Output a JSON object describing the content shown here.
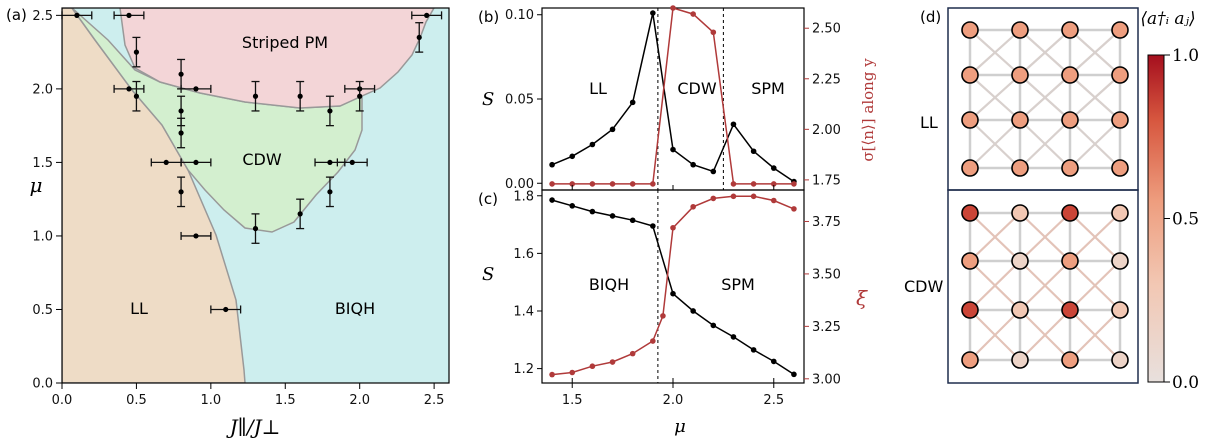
{
  "chart_data": [
    {
      "panel": "(a)",
      "type": "phase-diagram",
      "xlabel": "J∥/J⊥",
      "ylabel": "μ",
      "xlim": [
        0,
        2.6
      ],
      "ylim": [
        0,
        2.55
      ],
      "xticks": [
        0.0,
        0.5,
        1.0,
        1.5,
        2.0,
        2.5
      ],
      "yticks": [
        0.0,
        0.5,
        1.0,
        1.5,
        2.0,
        2.5
      ],
      "regions": [
        {
          "label": "Striped PM",
          "color": "#f3d5d7",
          "label_at": [
            1.55,
            2.35
          ]
        },
        {
          "label": "CDW",
          "color": "#d3efcf",
          "label_at": [
            1.35,
            1.5
          ]
        },
        {
          "label": "LL",
          "color": "#eedcc6",
          "label_at": [
            0.55,
            0.5
          ]
        },
        {
          "label": "BIQH",
          "color": "#cdeeee",
          "label_at": [
            1.95,
            0.5
          ]
        }
      ],
      "points": [
        {
          "x": 0.1,
          "y": 2.5,
          "xerr": 0.1,
          "yerr": 0
        },
        {
          "x": 0.45,
          "y": 2.5,
          "xerr": 0.1,
          "yerr": 0
        },
        {
          "x": 0.5,
          "y": 2.25,
          "xerr": 0,
          "yerr": 0.1
        },
        {
          "x": 0.45,
          "y": 2.0,
          "xerr": 0.1,
          "yerr": 0
        },
        {
          "x": 0.5,
          "y": 1.95,
          "xerr": 0,
          "yerr": 0.1
        },
        {
          "x": 0.8,
          "y": 2.1,
          "xerr": 0,
          "yerr": 0.1
        },
        {
          "x": 0.8,
          "y": 1.85,
          "xerr": 0,
          "yerr": 0.1
        },
        {
          "x": 0.9,
          "y": 2.0,
          "xerr": 0.1,
          "yerr": 0
        },
        {
          "x": 0.8,
          "y": 1.7,
          "xerr": 0,
          "yerr": 0.1
        },
        {
          "x": 0.7,
          "y": 1.5,
          "xerr": 0.1,
          "yerr": 0
        },
        {
          "x": 0.9,
          "y": 1.5,
          "xerr": 0.1,
          "yerr": 0
        },
        {
          "x": 0.8,
          "y": 1.3,
          "xerr": 0,
          "yerr": 0.1
        },
        {
          "x": 0.9,
          "y": 1.0,
          "xerr": 0.1,
          "yerr": 0
        },
        {
          "x": 1.1,
          "y": 0.5,
          "xerr": 0.1,
          "yerr": 0
        },
        {
          "x": 1.3,
          "y": 1.95,
          "xerr": 0,
          "yerr": 0.1
        },
        {
          "x": 1.6,
          "y": 1.95,
          "xerr": 0,
          "yerr": 0.1
        },
        {
          "x": 1.8,
          "y": 1.85,
          "xerr": 0,
          "yerr": 0.1
        },
        {
          "x": 2.0,
          "y": 2.0,
          "xerr": 0.1,
          "yerr": 0
        },
        {
          "x": 2.0,
          "y": 1.95,
          "xerr": 0,
          "yerr": 0.1
        },
        {
          "x": 1.8,
          "y": 1.5,
          "xerr": 0.1,
          "yerr": 0
        },
        {
          "x": 1.95,
          "y": 1.5,
          "xerr": 0.1,
          "yerr": 0
        },
        {
          "x": 1.8,
          "y": 1.3,
          "xerr": 0,
          "yerr": 0.1
        },
        {
          "x": 1.6,
          "y": 1.15,
          "xerr": 0,
          "yerr": 0.1
        },
        {
          "x": 1.3,
          "y": 1.05,
          "xerr": 0,
          "yerr": 0.1
        },
        {
          "x": 2.4,
          "y": 2.35,
          "xerr": 0,
          "yerr": 0.1
        },
        {
          "x": 2.45,
          "y": 2.5,
          "xerr": 0.1,
          "yerr": 0
        }
      ]
    },
    {
      "panel": "(b)",
      "type": "line",
      "ylabel": "S",
      "ylabel_right": "σ[⟨n⟩] along y",
      "xlim": [
        1.35,
        2.65
      ],
      "ylim": [
        -0.004,
        0.104
      ],
      "ylim_right": [
        1.7,
        2.6
      ],
      "yticks": [
        "0.00",
        "0.05",
        "0.10"
      ],
      "yticks_right": [
        "1.75",
        "2.00",
        "2.25",
        "2.50"
      ],
      "vlines": [
        1.925,
        2.25
      ],
      "region_labels": [
        "LL",
        "CDW",
        "SPM"
      ],
      "series": [
        {
          "axis": "left",
          "color": "#000000",
          "x": [
            1.4,
            1.5,
            1.6,
            1.7,
            1.8,
            1.9,
            2.0,
            2.1,
            2.2,
            2.3,
            2.4,
            2.5,
            2.6
          ],
          "y": [
            0.011,
            0.016,
            0.023,
            0.032,
            0.048,
            0.101,
            0.02,
            0.011,
            0.007,
            0.035,
            0.019,
            0.009,
            0.001
          ]
        },
        {
          "axis": "right",
          "color": "#b03a3a",
          "x": [
            1.4,
            1.5,
            1.6,
            1.7,
            1.8,
            1.9,
            2.0,
            2.1,
            2.2,
            2.3,
            2.4,
            2.5,
            2.6
          ],
          "y": [
            1.73,
            1.73,
            1.73,
            1.73,
            1.73,
            1.73,
            2.6,
            2.57,
            2.48,
            1.73,
            1.73,
            1.73,
            1.73
          ]
        }
      ]
    },
    {
      "panel": "(c)",
      "type": "line",
      "xlabel": "μ",
      "ylabel": "S",
      "ylabel_right": "ξ",
      "xlim": [
        1.35,
        2.65
      ],
      "xticks": [
        "1.5",
        "2.0",
        "2.5"
      ],
      "ylim": [
        1.15,
        1.82
      ],
      "ylim_right": [
        2.98,
        3.9
      ],
      "yticks": [
        "1.2",
        "1.4",
        "1.6",
        "1.8"
      ],
      "yticks_right": [
        "3.00",
        "3.25",
        "3.50",
        "3.75"
      ],
      "vlines": [
        1.925
      ],
      "region_labels": [
        "BIQH",
        "SPM"
      ],
      "series": [
        {
          "axis": "left",
          "color": "#000000",
          "x": [
            1.4,
            1.5,
            1.6,
            1.7,
            1.8,
            1.9,
            2.0,
            2.1,
            2.2,
            2.3,
            2.4,
            2.5,
            2.6
          ],
          "y": [
            1.785,
            1.765,
            1.745,
            1.73,
            1.715,
            1.695,
            1.46,
            1.4,
            1.35,
            1.31,
            1.265,
            1.225,
            1.18
          ]
        },
        {
          "axis": "right",
          "color": "#b03a3a",
          "x": [
            1.4,
            1.5,
            1.6,
            1.7,
            1.8,
            1.9,
            1.95,
            2.0,
            2.1,
            2.2,
            2.3,
            2.4,
            2.5,
            2.6
          ],
          "y": [
            3.02,
            3.03,
            3.06,
            3.08,
            3.12,
            3.18,
            3.3,
            3.72,
            3.82,
            3.86,
            3.87,
            3.87,
            3.85,
            3.81
          ]
        }
      ]
    },
    {
      "panel": "(d)",
      "type": "heatmap",
      "colorbar_label": "⟨a†ᵢ aⱼ⟩",
      "colorbar_ticks": [
        "0.0",
        "0.5",
        "1.0"
      ],
      "colorbar_range": [
        0,
        1
      ],
      "rows_labels": [
        "LL",
        "CDW"
      ],
      "lattices": [
        {
          "label": "LL",
          "sites": [
            [
              0.55,
              0.55,
              0.55,
              0.55
            ],
            [
              0.55,
              0.55,
              0.55,
              0.55
            ],
            [
              0.55,
              0.55,
              0.55,
              0.55
            ],
            [
              0.55,
              0.55,
              0.55,
              0.55
            ]
          ]
        },
        {
          "label": "CDW",
          "sites": [
            [
              0.85,
              0.3,
              0.85,
              0.3
            ],
            [
              0.55,
              0.15,
              0.55,
              0.15
            ],
            [
              0.85,
              0.3,
              0.85,
              0.3
            ],
            [
              0.55,
              0.15,
              0.55,
              0.15
            ]
          ]
        }
      ]
    }
  ]
}
